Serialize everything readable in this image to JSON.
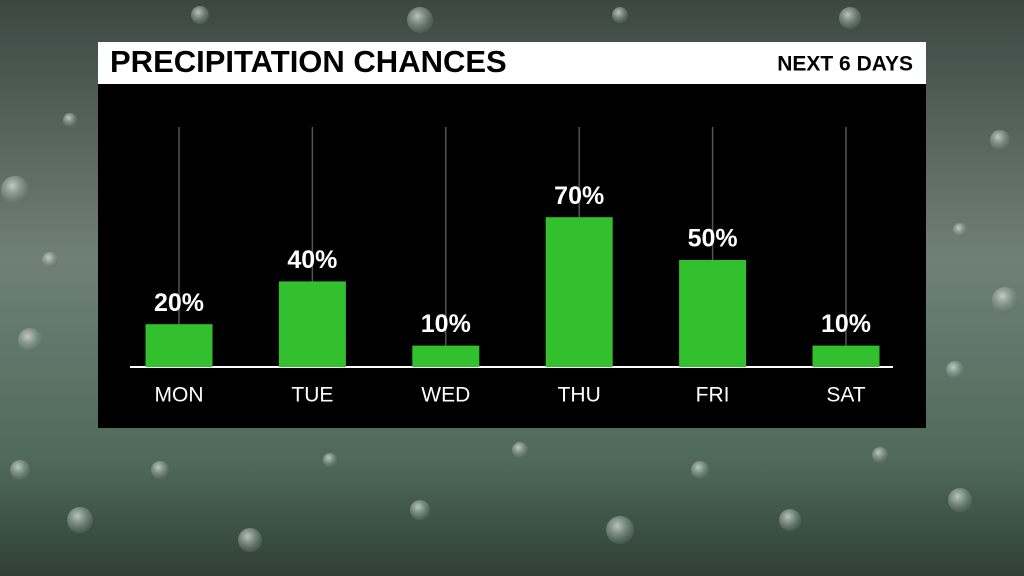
{
  "chart_data": {
    "type": "bar",
    "title": "PRECIPITATION CHANCES",
    "subtitle": "NEXT 6 DAYS",
    "categories": [
      "MON",
      "TUE",
      "WED",
      "THU",
      "FRI",
      "SAT"
    ],
    "values": [
      20,
      40,
      10,
      70,
      50,
      10
    ],
    "value_labels": [
      "20%",
      "40%",
      "10%",
      "70%",
      "50%",
      "10%"
    ],
    "color": "#33c02e",
    "ylim": [
      0,
      100
    ]
  }
}
